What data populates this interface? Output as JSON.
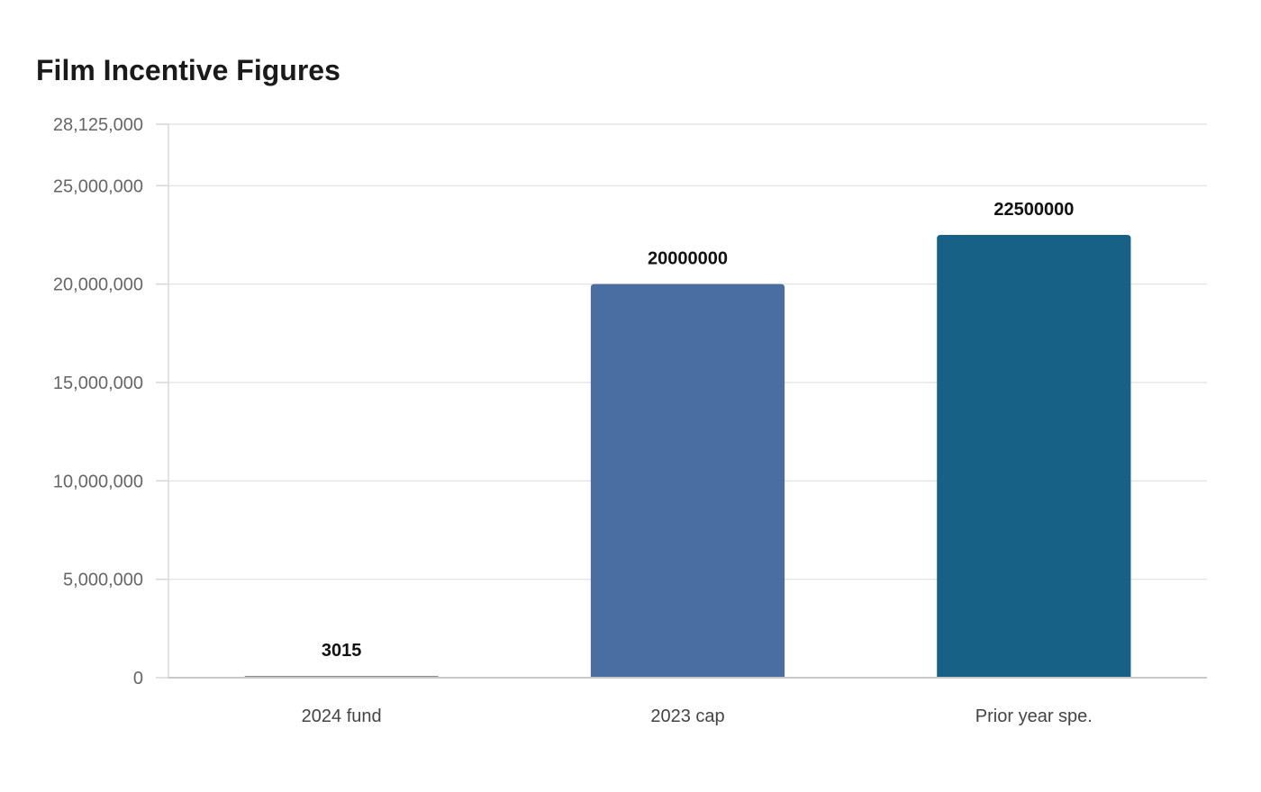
{
  "chart_data": {
    "type": "bar",
    "title": "Film Incentive Figures",
    "xlabel": "",
    "ylabel": "",
    "categories": [
      "2024 fund",
      "2023 cap",
      "Prior year spe."
    ],
    "values": [
      3015,
      20000000,
      22500000
    ],
    "data_labels": [
      "3015",
      "20000000",
      "22500000"
    ],
    "colors": [
      "#8c8c8c",
      "#4a6da2",
      "#176186"
    ],
    "ylim": [
      0,
      28125000
    ],
    "yticks": [
      0,
      5000000,
      10000000,
      15000000,
      20000000,
      25000000,
      28125000
    ],
    "ytick_labels": [
      "0",
      "5,000,000",
      "10,000,000",
      "15,000,000",
      "20,000,000",
      "25,000,000",
      "28,125,000"
    ],
    "grid": true,
    "legend": "none"
  }
}
